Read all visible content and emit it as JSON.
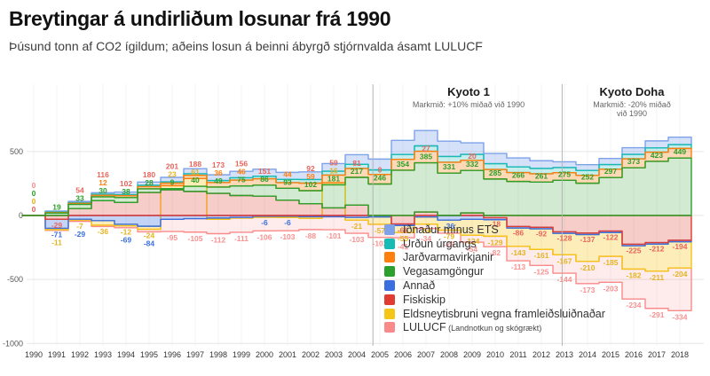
{
  "title": "Breytingar á undirliðum losunar frá 1990",
  "subtitle": "Þúsund tonn af CO2 ígildum; aðeins losun á beinni ábyrgð stjórnvalda ásamt LULUCF",
  "legend": {
    "items": [
      {
        "label": "Iðnaður mínus ETS",
        "color": "#7da2e8"
      },
      {
        "label": "Urðun úrgangs",
        "color": "#16bcb4"
      },
      {
        "label": "Jarðvarmavirkjanir",
        "color": "#ff7f0e"
      },
      {
        "label": "Vegasamgöngur",
        "color": "#2ca02c"
      },
      {
        "label": "Annað",
        "color": "#3b6fe0"
      },
      {
        "label": "Fiskiskip",
        "color": "#e03c31"
      },
      {
        "label": "Eldsneytisbruni vegna framleiðsluiðnaðar",
        "color": "#f5c518"
      },
      {
        "label": "LULUCF",
        "suffix": "(Landnotkun og skógrækt)",
        "color": "#fa8a8a"
      }
    ]
  },
  "chart_data": {
    "type": "area",
    "subtype": "stacked-step-diverging",
    "x": [
      1990,
      1991,
      1992,
      1993,
      1994,
      1995,
      1996,
      1997,
      1998,
      1999,
      2000,
      2001,
      2002,
      2003,
      2004,
      2005,
      2006,
      2007,
      2008,
      2009,
      2010,
      2011,
      2012,
      2013,
      2014,
      2015,
      2016,
      2017,
      2018
    ],
    "ylim": [
      -1050,
      700
    ],
    "yticks": [
      500,
      0,
      -500,
      -1000
    ],
    "grid": true,
    "series": [
      {
        "key": "I",
        "name": "Iðnaður mínus ETS",
        "color": "#7da2e8",
        "fillAlpha": 0.32,
        "values": [
          0,
          8,
          10,
          12,
          20,
          25,
          35,
          40,
          45,
          50,
          55,
          55,
          60,
          60,
          75,
          85,
          110,
          120,
          120,
          90,
          80,
          70,
          60,
          45,
          45,
          48,
          52,
          55,
          58
        ]
      },
      {
        "key": "U",
        "name": "Urðun úrgangs",
        "color": "#16bcb4",
        "fillAlpha": 0.25,
        "values": [
          0,
          3,
          5,
          8,
          8,
          10,
          10,
          12,
          15,
          18,
          20,
          25,
          28,
          30,
          32,
          35,
          38,
          42,
          45,
          46,
          45,
          44,
          42,
          40,
          38,
          36,
          35,
          33,
          30
        ]
      },
      {
        "key": "J",
        "name": "Jarðvarmavirkjanir",
        "color": "#ff7f0e",
        "fillAlpha": 0.3,
        "values": [
          0,
          5,
          8,
          12,
          15,
          18,
          20,
          25,
          36,
          46,
          50,
          44,
          59,
          60,
          70,
          75,
          85,
          90,
          85,
          80,
          75,
          70,
          65,
          60,
          62,
          65,
          70,
          72,
          75
        ]
      },
      {
        "key": "V",
        "name": "Vegasamgöngur",
        "color": "#2ca02c",
        "fillAlpha": 0.22,
        "values": [
          0,
          19,
          33,
          30,
          38,
          28,
          9,
          40,
          49,
          75,
          86,
          93,
          102,
          181,
          217,
          246,
          354,
          385,
          331,
          332,
          285,
          266,
          261,
          275,
          252,
          297,
          373,
          423,
          449
        ]
      },
      {
        "key": "A",
        "name": "Annað",
        "color": "#3b6fe0",
        "fillAlpha": 0.3,
        "values": [
          0,
          -71,
          -29,
          -40,
          -69,
          -84,
          -30,
          -25,
          -20,
          -15,
          -6,
          -6,
          -10,
          -10,
          -15,
          -12,
          -12,
          -12,
          -36,
          -30,
          -15,
          -12,
          -12,
          -12,
          -12,
          -12,
          -12,
          -12,
          -12
        ]
      },
      {
        "key": "F",
        "name": "Fiskiskip",
        "color": "#e03c31",
        "fillAlpha": 0.26,
        "values": [
          0,
          -29,
          54,
          116,
          102,
          180,
          201,
          188,
          173,
          156,
          151,
          120,
          92,
          59,
          81,
          0,
          -66,
          27,
          0,
          20,
          -18,
          -86,
          -92,
          -128,
          -137,
          -122,
          -225,
          -212,
          -194
        ]
      },
      {
        "key": "E",
        "name": "Eldsneytisbruni vegna framleiðsluiðnaðar",
        "color": "#f5c518",
        "fillAlpha": 0.3,
        "values": [
          0,
          -11,
          -7,
          -36,
          -12,
          -24,
          23,
          61,
          -10,
          -5,
          -8,
          -10,
          -12,
          16,
          -21,
          -57,
          -55,
          -56,
          -79,
          -124,
          -129,
          -143,
          -161,
          -167,
          -210,
          -185,
          -182,
          -211,
          -204
        ]
      },
      {
        "key": "L",
        "name": "LULUCF (Landnotkun og skógrækt)",
        "color": "#fa8a8a",
        "fillAlpha": 0.16,
        "values": [
          0,
          -5,
          -10,
          -10,
          -15,
          -20,
          -95,
          -105,
          -112,
          -111,
          -106,
          -103,
          -88,
          -101,
          -103,
          -102,
          -41,
          -34,
          -23,
          -54,
          -82,
          -113,
          -125,
          -144,
          -173,
          -203,
          -234,
          -291,
          -334
        ]
      }
    ],
    "stack_order": [
      "F",
      "V",
      "A",
      "E",
      "J",
      "U",
      "I",
      "L"
    ],
    "draw_order": [
      "L",
      "E",
      "A",
      "I",
      "U",
      "J",
      "F",
      "V"
    ],
    "label_colors": {
      "V": "#2ca02c",
      "J": "#ff7f0e",
      "U": "#16bcb4",
      "I": "#7da2e8",
      "A": "#3b6fe0",
      "F": "#e8645c",
      "E": "#e3b421",
      "L": "#f89191"
    },
    "value_labels": [
      {
        "year": 1990,
        "series": "F",
        "text": "0"
      },
      {
        "year": 1990,
        "series": "E",
        "text": "0"
      },
      {
        "year": 1990,
        "series": "V",
        "text": "0"
      },
      {
        "year": 1990,
        "series": "L",
        "text": "0"
      },
      {
        "year": 1991,
        "series": "V",
        "text": "19"
      },
      {
        "year": 1991,
        "series": "F",
        "text": "-29"
      },
      {
        "year": 1991,
        "series": "A",
        "text": "-71"
      },
      {
        "year": 1991,
        "series": "E",
        "text": "-11"
      },
      {
        "year": 1992,
        "series": "V",
        "text": "33"
      },
      {
        "year": 1992,
        "series": "F",
        "text": "54"
      },
      {
        "year": 1992,
        "series": "E",
        "text": "-7"
      },
      {
        "year": 1992,
        "series": "A",
        "text": "-29"
      },
      {
        "year": 1993,
        "series": "V",
        "text": "30"
      },
      {
        "year": 1993,
        "series": "J",
        "text": "12"
      },
      {
        "year": 1993,
        "series": "F",
        "text": "116"
      },
      {
        "year": 1993,
        "series": "E",
        "text": "-36"
      },
      {
        "year": 1994,
        "series": "V",
        "text": "38"
      },
      {
        "year": 1994,
        "series": "F",
        "text": "102"
      },
      {
        "year": 1994,
        "series": "E",
        "text": "-12"
      },
      {
        "year": 1994,
        "series": "A",
        "text": "-69"
      },
      {
        "year": 1995,
        "series": "V",
        "text": "28"
      },
      {
        "year": 1995,
        "series": "F",
        "text": "180"
      },
      {
        "year": 1995,
        "series": "E",
        "text": "-24"
      },
      {
        "year": 1995,
        "series": "A",
        "text": "-84"
      },
      {
        "year": 1996,
        "series": "V",
        "text": "9"
      },
      {
        "year": 1996,
        "series": "E",
        "text": "23"
      },
      {
        "year": 1996,
        "series": "F",
        "text": "201"
      },
      {
        "year": 1996,
        "series": "L",
        "text": "-95"
      },
      {
        "year": 1997,
        "series": "V",
        "text": "40"
      },
      {
        "year": 1997,
        "series": "E",
        "text": "61"
      },
      {
        "year": 1997,
        "series": "F",
        "text": "188"
      },
      {
        "year": 1997,
        "series": "L",
        "text": "-105"
      },
      {
        "year": 1998,
        "series": "V",
        "text": "49"
      },
      {
        "year": 1998,
        "series": "J",
        "text": "36"
      },
      {
        "year": 1998,
        "series": "F",
        "text": "173"
      },
      {
        "year": 1998,
        "series": "L",
        "text": "-112"
      },
      {
        "year": 1999,
        "series": "V",
        "text": "75"
      },
      {
        "year": 1999,
        "series": "J",
        "text": "46"
      },
      {
        "year": 1999,
        "series": "F",
        "text": "156"
      },
      {
        "year": 1999,
        "series": "L",
        "text": "-111"
      },
      {
        "year": 2000,
        "series": "V",
        "text": "86"
      },
      {
        "year": 2000,
        "series": "F",
        "text": "151"
      },
      {
        "year": 2000,
        "series": "A",
        "text": "-6"
      },
      {
        "year": 2000,
        "series": "L",
        "text": "-106"
      },
      {
        "year": 2001,
        "series": "V",
        "text": "93"
      },
      {
        "year": 2001,
        "series": "J",
        "text": "44"
      },
      {
        "year": 2001,
        "series": "A",
        "text": "-6"
      },
      {
        "year": 2001,
        "series": "L",
        "text": "-103"
      },
      {
        "year": 2002,
        "series": "V",
        "text": "102"
      },
      {
        "year": 2002,
        "series": "J",
        "text": "59"
      },
      {
        "year": 2002,
        "series": "F",
        "text": "92"
      },
      {
        "year": 2002,
        "series": "L",
        "text": "-88"
      },
      {
        "year": 2003,
        "series": "V",
        "text": "181"
      },
      {
        "year": 2003,
        "series": "E",
        "text": "16"
      },
      {
        "year": 2003,
        "series": "F",
        "text": "59"
      },
      {
        "year": 2003,
        "series": "L",
        "text": "-101"
      },
      {
        "year": 2004,
        "series": "V",
        "text": "217"
      },
      {
        "year": 2004,
        "series": "F",
        "text": "81"
      },
      {
        "year": 2004,
        "series": "E",
        "text": "-21"
      },
      {
        "year": 2004,
        "series": "L",
        "text": "-103"
      },
      {
        "year": 2005,
        "series": "V",
        "text": "246"
      },
      {
        "year": 2005,
        "series": "F",
        "text": "0"
      },
      {
        "year": 2005,
        "series": "E",
        "text": "-57"
      },
      {
        "year": 2005,
        "series": "L",
        "text": "-102"
      },
      {
        "year": 2006,
        "series": "V",
        "text": "354"
      },
      {
        "year": 2006,
        "series": "F",
        "text": "-66"
      },
      {
        "year": 2006,
        "series": "E",
        "text": "-55"
      },
      {
        "year": 2006,
        "series": "L",
        "text": "-41"
      },
      {
        "year": 2007,
        "series": "V",
        "text": "385"
      },
      {
        "year": 2007,
        "series": "F",
        "text": "27"
      },
      {
        "year": 2007,
        "series": "E",
        "text": "-56"
      },
      {
        "year": 2007,
        "series": "L",
        "text": "-34"
      },
      {
        "year": 2008,
        "series": "V",
        "text": "331"
      },
      {
        "year": 2008,
        "series": "A",
        "text": "-36"
      },
      {
        "year": 2008,
        "series": "E",
        "text": "-79"
      },
      {
        "year": 2008,
        "series": "L",
        "text": "-23"
      },
      {
        "year": 2009,
        "series": "V",
        "text": "332"
      },
      {
        "year": 2009,
        "series": "F",
        "text": "20"
      },
      {
        "year": 2009,
        "series": "E",
        "text": "-124"
      },
      {
        "year": 2009,
        "series": "L",
        "text": "-54"
      },
      {
        "year": 2010,
        "series": "V",
        "text": "285"
      },
      {
        "year": 2010,
        "series": "F",
        "text": "-18"
      },
      {
        "year": 2010,
        "series": "E",
        "text": "-129"
      },
      {
        "year": 2010,
        "series": "L",
        "text": "-82"
      },
      {
        "year": 2011,
        "series": "V",
        "text": "266"
      },
      {
        "year": 2011,
        "series": "F",
        "text": "-86"
      },
      {
        "year": 2011,
        "series": "E",
        "text": "-143"
      },
      {
        "year": 2011,
        "series": "L",
        "text": "-113"
      },
      {
        "year": 2012,
        "series": "V",
        "text": "261"
      },
      {
        "year": 2012,
        "series": "F",
        "text": "-92"
      },
      {
        "year": 2012,
        "series": "E",
        "text": "-161"
      },
      {
        "year": 2012,
        "series": "L",
        "text": "-125"
      },
      {
        "year": 2013,
        "series": "V",
        "text": "275"
      },
      {
        "year": 2013,
        "series": "F",
        "text": "-128"
      },
      {
        "year": 2013,
        "series": "E",
        "text": "-167"
      },
      {
        "year": 2013,
        "series": "L",
        "text": "-144"
      },
      {
        "year": 2014,
        "series": "V",
        "text": "252"
      },
      {
        "year": 2014,
        "series": "F",
        "text": "-137"
      },
      {
        "year": 2014,
        "series": "E",
        "text": "-210"
      },
      {
        "year": 2014,
        "series": "L",
        "text": "-173"
      },
      {
        "year": 2015,
        "series": "V",
        "text": "297"
      },
      {
        "year": 2015,
        "series": "F",
        "text": "-122"
      },
      {
        "year": 2015,
        "series": "E",
        "text": "-185"
      },
      {
        "year": 2015,
        "series": "L",
        "text": "-203"
      },
      {
        "year": 2016,
        "series": "V",
        "text": "373"
      },
      {
        "year": 2016,
        "series": "F",
        "text": "-225"
      },
      {
        "year": 2016,
        "series": "E",
        "text": "-182"
      },
      {
        "year": 2016,
        "series": "L",
        "text": "-234"
      },
      {
        "year": 2017,
        "series": "V",
        "text": "423"
      },
      {
        "year": 2017,
        "series": "F",
        "text": "-212"
      },
      {
        "year": 2017,
        "series": "E",
        "text": "-211"
      },
      {
        "year": 2017,
        "series": "L",
        "text": "-291"
      },
      {
        "year": 2018,
        "series": "V",
        "text": "449"
      },
      {
        "year": 2018,
        "series": "F",
        "text": "-194"
      },
      {
        "year": 2018,
        "series": "E",
        "text": "-204"
      },
      {
        "year": 2018,
        "series": "L",
        "text": "-334"
      }
    ],
    "regions": [
      {
        "label": "Kyoto 1",
        "sublabel": "Markmið: +10% miðað við 1990",
        "line_at_year": 2004.7,
        "center_year": 18.85
      },
      {
        "label": "Kyoto Doha",
        "sublabel": "Markmið: -20% miðað við 1990",
        "line_at_year": 2012.9,
        "center_year": 25.95
      }
    ]
  },
  "colors": {
    "grid": "#e6e6e6",
    "axis_text": "#555",
    "divider": "#b3b3b3"
  }
}
